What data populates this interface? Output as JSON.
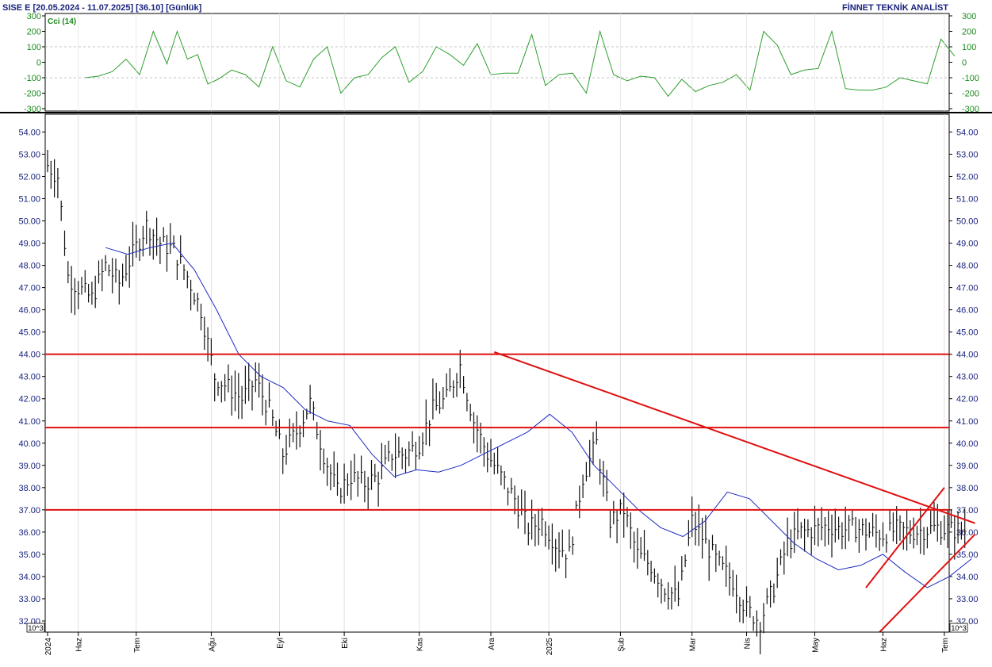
{
  "header": {
    "symbol": "SISE  E  [20.05.2024 - 11.07.2025]  [36.10]  [Günlük]",
    "brand": "FİNNET TEKNİK ANALİST"
  },
  "cci_panel": {
    "label": "Cci (14)",
    "ticks": [
      "300",
      "200",
      "100",
      "0",
      "-100",
      "-200",
      "-300"
    ]
  },
  "price_panel": {
    "ticks": [
      "54.00",
      "53.00",
      "52.00",
      "51.00",
      "50.00",
      "49.00",
      "48.00",
      "47.00",
      "46.00",
      "45.00",
      "44.00",
      "43.00",
      "42.00",
      "41.00",
      "40.00",
      "39.00",
      "38.00",
      "37.00",
      "36.00",
      "35.00",
      "34.00",
      "33.00",
      "32.00"
    ],
    "unit_left": "10^3",
    "unit_right": "10^3"
  },
  "x_axis": {
    "labels": [
      "2024",
      "Haz",
      "Tem",
      "Ağu",
      "Eyl",
      "Eki",
      "Kas",
      "Ara",
      "2025",
      "Şub",
      "Mar",
      "Nis",
      "May",
      "Haz",
      "Tem"
    ]
  },
  "colors": {
    "bars": "#111111",
    "ma": "#1f2bbf",
    "cci": "#2e9e2e",
    "levels": "#e01010",
    "grid": "#b0b0b0",
    "axis_text": "#1a237e",
    "cci_text": "#1b8a1b"
  },
  "chart_data": [
    {
      "type": "line",
      "name_note": "CCI indicator panel",
      "series": [
        {
          "name": "Cci (14)",
          "x_index": [
            11,
            15,
            19,
            23,
            27,
            31,
            35,
            38,
            41,
            44,
            47,
            50,
            54,
            58,
            62,
            66,
            70,
            74,
            78,
            82,
            86,
            90,
            94,
            98,
            102,
            106,
            110,
            114,
            118,
            122,
            126,
            130,
            134,
            138,
            142,
            146,
            150,
            154,
            158,
            162,
            166,
            170,
            174,
            178,
            182,
            186,
            190,
            194,
            198,
            202,
            206,
            210,
            214,
            218,
            222,
            226,
            230,
            234,
            238,
            242,
            246,
            250,
            254,
            258,
            262,
            266
          ],
          "values": [
            -100,
            -90,
            -60,
            20,
            -80,
            200,
            -10,
            200,
            20,
            50,
            -140,
            -110,
            -50,
            -80,
            -160,
            100,
            -120,
            -160,
            20,
            100,
            -200,
            -100,
            -80,
            30,
            100,
            -130,
            -60,
            100,
            50,
            -20,
            120,
            -80,
            -70,
            -70,
            180,
            -150,
            -80,
            -70,
            -200,
            200,
            -80,
            -120,
            -90,
            -100,
            -220,
            -110,
            -190,
            -150,
            -130,
            -80,
            -180,
            200,
            110,
            -80,
            -50,
            -40,
            200,
            -170,
            -180,
            -180,
            -160,
            -100,
            -120,
            -140,
            150,
            40
          ]
        }
      ],
      "ylim": [
        -300,
        300
      ]
    },
    {
      "type": "bar",
      "style": "ohlc-daily",
      "x_labels": [
        "2024",
        "Haz",
        "Tem",
        "Ağu",
        "Eyl",
        "Eki",
        "Kas",
        "Ara",
        "2025",
        "Şub",
        "Mar",
        "Nis",
        "May",
        "Haz",
        "Tem"
      ],
      "x_label_index": [
        0,
        9,
        26,
        48,
        68,
        87,
        109,
        130,
        147,
        168,
        189,
        205,
        225,
        245,
        263
      ],
      "close_index": [
        0,
        3,
        6,
        9,
        13,
        17,
        21,
        25,
        29,
        33,
        37,
        41,
        45,
        49,
        53,
        57,
        61,
        65,
        69,
        73,
        77,
        81,
        85,
        89,
        93,
        97,
        101,
        105,
        109,
        113,
        117,
        121,
        125,
        129,
        133,
        137,
        141,
        145,
        149,
        153,
        157,
        161,
        165,
        169,
        173,
        177,
        181,
        185,
        189,
        193,
        197,
        201,
        205,
        209,
        213,
        217,
        221,
        225,
        229,
        233,
        237,
        241,
        245,
        249,
        253,
        257,
        261,
        265,
        269
      ],
      "close": [
        52.5,
        52.0,
        47.5,
        47.0,
        46.5,
        48.0,
        47.2,
        48.5,
        49.8,
        49.0,
        48.7,
        47.5,
        46.0,
        43.0,
        42.5,
        42.0,
        42.8,
        41.5,
        39.5,
        40.5,
        41.8,
        39.5,
        37.8,
        38.5,
        38.2,
        38.5,
        39.5,
        39.5,
        40.0,
        41.5,
        42.0,
        43.5,
        41.0,
        39.5,
        38.5,
        37.5,
        36.2,
        36.5,
        35.5,
        35.0,
        38.5,
        40.0,
        36.5,
        37.0,
        35.0,
        34.5,
        33.5,
        33.0,
        36.5,
        35.5,
        34.5,
        33.8,
        32.5,
        32.0,
        33.5,
        35.5,
        36.0,
        36.1,
        36.3,
        36.1,
        36.2,
        36.0,
        35.9,
        36.1,
        36.0,
        36.1,
        36.2,
        36.1,
        36.1
      ],
      "moving_average": [
        48.8,
        48.5,
        48.8,
        49.0,
        47.8,
        46.0,
        44.0,
        43.0,
        42.5,
        41.5,
        41.0,
        40.8,
        39.5,
        38.5,
        38.8,
        38.7,
        39.0,
        39.5,
        40.0,
        40.5,
        41.3,
        40.5,
        39.0,
        38.0,
        37.0,
        36.2,
        35.8,
        36.5,
        37.8,
        37.5,
        36.5,
        35.5,
        34.8,
        34.3,
        34.5,
        35.0,
        34.2,
        33.5,
        34.0,
        34.8
      ],
      "ylim": [
        31.5,
        54.8
      ]
    },
    {
      "type": "line",
      "name_note": "support/resistance levels",
      "horizontal_levels": [
        44.0,
        40.7,
        37.0
      ],
      "trendlines": [
        {
          "from_index": 131,
          "from_value": 44.1,
          "to_index": 272,
          "to_value": 36.4
        },
        {
          "from_index": 244,
          "from_value": 31.5,
          "to_index": 272,
          "to_value": 35.9
        },
        {
          "from_index": 240,
          "from_value": 33.5,
          "to_index": 263,
          "to_value": 38.0
        }
      ]
    }
  ]
}
